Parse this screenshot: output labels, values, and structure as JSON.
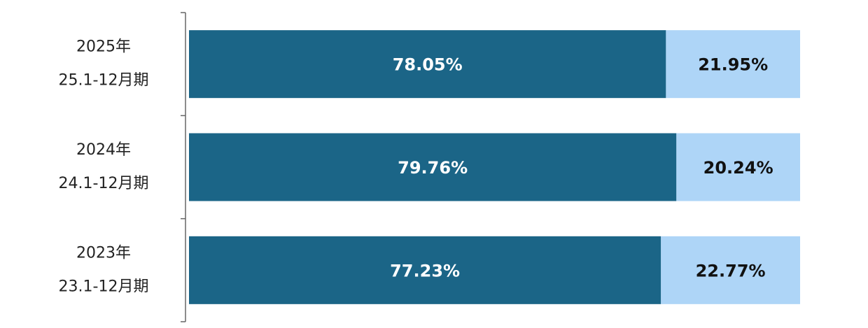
{
  "chart_data": {
    "type": "stacked-bar-horizontal",
    "categories": [
      [
        "2025年",
        "25.1-12月期"
      ],
      [
        "2024年",
        "24.1-12月期"
      ],
      [
        "2023年",
        "23.1-12月期"
      ]
    ],
    "series": [
      {
        "color": "#1b6587",
        "label_color": "#ffffff",
        "values": [
          78.05,
          79.76,
          77.23
        ],
        "value_labels": [
          "78.05%",
          "79.76%",
          "77.23%"
        ]
      },
      {
        "color": "#aed5f7",
        "label_color": "#111111",
        "values": [
          21.95,
          20.24,
          22.77
        ],
        "value_labels": [
          "21.95%",
          "20.24%",
          "22.77%"
        ]
      }
    ],
    "xlim": [
      0,
      100
    ]
  }
}
